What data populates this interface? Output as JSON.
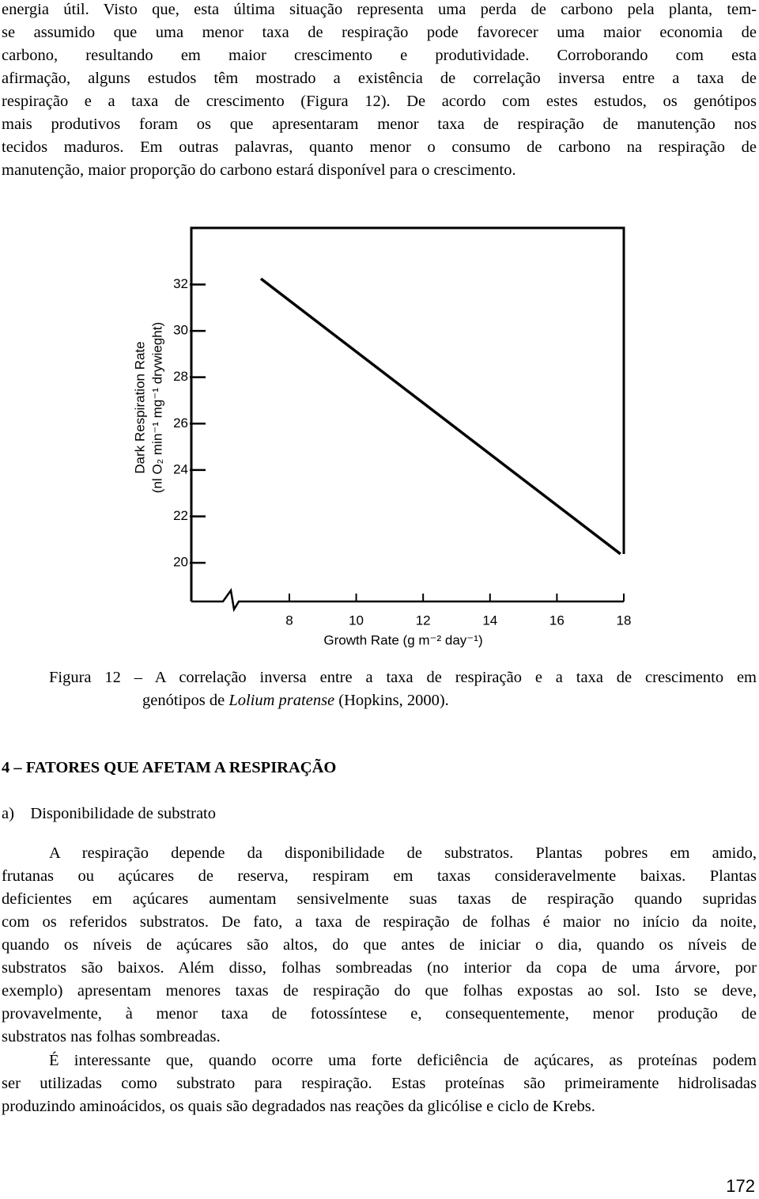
{
  "body": {
    "paragraphs": [
      {
        "indent": false,
        "lines": [
          "energia útil. Visto que, esta última situação representa uma perda de carbono pela planta, tem-",
          "se assumido que uma menor taxa de respiração pode favorecer uma maior economia de",
          "carbono, resultando em maior crescimento e produtividade. Corroborando com esta",
          "afirmação, alguns estudos têm mostrado a existência de correlação inversa entre a taxa de",
          "respiração e a taxa de crescimento (Figura 12). De acordo com estes estudos, os genótipos",
          "mais produtivos foram os que apresentaram menor taxa de respiração de manutenção nos",
          "tecidos maduros. Em outras palavras, quanto menor o consumo de carbono na respiração de",
          "manutenção, maior proporção do carbono estará disponível para o crescimento."
        ]
      }
    ],
    "figure_caption": {
      "line1": "Figura 12 – A correlação inversa entre a taxa de respiração e a taxa de crescimento em",
      "line2": [
        "genótipos de ",
        "Lolium pratense",
        " (Hopkins, 2000)."
      ]
    },
    "section_heading": "4 – FATORES QUE AFETAM A RESPIRAÇÃO",
    "subheading": "a) Disponibilidade de substrato",
    "section_paragraphs": [
      {
        "indent": true,
        "lines": [
          "A respiração depende da disponibilidade de substratos. Plantas pobres em amido,",
          "frutanas ou açúcares de reserva, respiram em taxas consideravelmente baixas. Plantas",
          "deficientes em açúcares aumentam sensivelmente suas taxas de respiração quando supridas",
          "com os referidos substratos. De fato, a taxa de respiração de folhas é maior no início da noite,",
          "quando os níveis de açúcares são altos, do que antes de iniciar o dia, quando os níveis de",
          "substratos são baixos. Além disso, folhas sombreadas (no interior da copa de uma árvore, por",
          "exemplo) apresentam menores taxas de respiração do que folhas expostas ao sol. Isto se deve,",
          "provavelmente, à menor taxa de fotossíntese e, consequentemente, menor produção de",
          "substratos nas folhas sombreadas."
        ]
      },
      {
        "indent": true,
        "lines": [
          "É interessante que, quando ocorre uma forte deficiência de açúcares, as proteínas podem",
          "ser utilizadas como substrato para respiração. Estas proteínas são primeiramente hidrolisadas",
          "produzindo aminoácidos, os quais são degradados nas reações da glicólise e ciclo de Krebs."
        ]
      }
    ],
    "page_number": "172"
  },
  "chart_data": {
    "type": "line",
    "y_label": [
      "Dark Respiration Rate",
      "(nl O₂ min⁻¹ mg⁻¹ drywieght)"
    ],
    "x_label": "Growth Rate (g m⁻² day⁻¹)",
    "x": [
      7.15,
      17.9
    ],
    "series": [
      {
        "color": "#000000",
        "values": [
          32.25,
          20.38
        ]
      }
    ],
    "xlim": [
      5.07,
      18.0
    ],
    "ylim": [
      18.33,
      34.44
    ],
    "xticks": [
      8,
      10,
      12,
      14,
      16,
      18
    ],
    "yticks": [
      20,
      22,
      24,
      26,
      28,
      30,
      32
    ]
  }
}
